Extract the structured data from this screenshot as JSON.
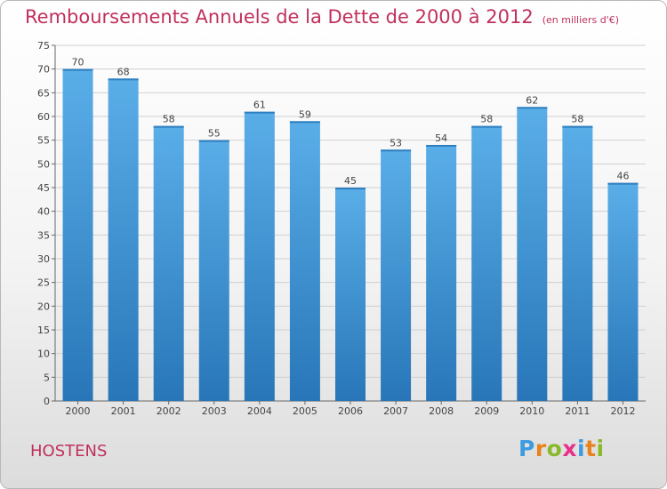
{
  "title": "Remboursements Annuels de la Dette de 2000 à 2012",
  "unit": "(en milliers d'€)",
  "commune": "HOSTENS",
  "brand": {
    "letters": [
      "P",
      "r",
      "o",
      "x",
      "i",
      "t",
      "i"
    ],
    "colors": [
      "#3d9be0",
      "#e8821c",
      "#89b92b",
      "#e8308a",
      "#3d9be0",
      "#e8821c",
      "#89b92b"
    ]
  },
  "colors": {
    "bar_top": "#5aaee8",
    "bar_bottom": "#2876b8",
    "title": "#c0305c"
  },
  "chart_data": {
    "type": "bar",
    "categories": [
      "2000",
      "2001",
      "2002",
      "2003",
      "2004",
      "2005",
      "2006",
      "2007",
      "2008",
      "2009",
      "2010",
      "2011",
      "2012"
    ],
    "values": [
      70,
      68,
      58,
      55,
      61,
      59,
      45,
      53,
      54,
      58,
      62,
      58,
      46
    ],
    "ylim": [
      0,
      75
    ],
    "yticks": [
      0,
      5,
      10,
      15,
      20,
      25,
      30,
      35,
      40,
      45,
      50,
      55,
      60,
      65,
      70,
      75
    ],
    "grid": true,
    "data_labels": true
  }
}
